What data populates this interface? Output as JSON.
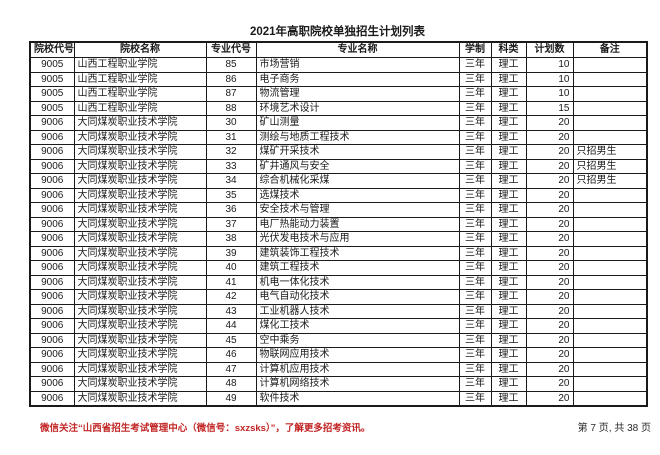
{
  "title": "2021年高职院校单独招生计划列表",
  "table": {
    "headers": [
      "院校代号",
      "院校名称",
      "专业代号",
      "专业名称",
      "学制",
      "科类",
      "计划数",
      "备注"
    ],
    "rows": [
      [
        "9005",
        "山西工程职业学院",
        "85",
        "市场营销",
        "三年",
        "理工",
        "10",
        ""
      ],
      [
        "9005",
        "山西工程职业学院",
        "86",
        "电子商务",
        "三年",
        "理工",
        "10",
        ""
      ],
      [
        "9005",
        "山西工程职业学院",
        "87",
        "物流管理",
        "三年",
        "理工",
        "10",
        ""
      ],
      [
        "9005",
        "山西工程职业学院",
        "88",
        "环境艺术设计",
        "三年",
        "理工",
        "15",
        ""
      ],
      [
        "9006",
        "大同煤炭职业技术学院",
        "30",
        "矿山测量",
        "三年",
        "理工",
        "20",
        ""
      ],
      [
        "9006",
        "大同煤炭职业技术学院",
        "31",
        "测绘与地质工程技术",
        "三年",
        "理工",
        "20",
        ""
      ],
      [
        "9006",
        "大同煤炭职业技术学院",
        "32",
        "煤矿开采技术",
        "三年",
        "理工",
        "20",
        "只招男生"
      ],
      [
        "9006",
        "大同煤炭职业技术学院",
        "33",
        "矿井通风与安全",
        "三年",
        "理工",
        "20",
        "只招男生"
      ],
      [
        "9006",
        "大同煤炭职业技术学院",
        "34",
        "综合机械化采煤",
        "三年",
        "理工",
        "20",
        "只招男生"
      ],
      [
        "9006",
        "大同煤炭职业技术学院",
        "35",
        "选煤技术",
        "三年",
        "理工",
        "20",
        ""
      ],
      [
        "9006",
        "大同煤炭职业技术学院",
        "36",
        "安全技术与管理",
        "三年",
        "理工",
        "20",
        ""
      ],
      [
        "9006",
        "大同煤炭职业技术学院",
        "37",
        "电厂热能动力装置",
        "三年",
        "理工",
        "20",
        ""
      ],
      [
        "9006",
        "大同煤炭职业技术学院",
        "38",
        "光伏发电技术与应用",
        "三年",
        "理工",
        "20",
        ""
      ],
      [
        "9006",
        "大同煤炭职业技术学院",
        "39",
        "建筑装饰工程技术",
        "三年",
        "理工",
        "20",
        ""
      ],
      [
        "9006",
        "大同煤炭职业技术学院",
        "40",
        "建筑工程技术",
        "三年",
        "理工",
        "20",
        ""
      ],
      [
        "9006",
        "大同煤炭职业技术学院",
        "41",
        "机电一体化技术",
        "三年",
        "理工",
        "20",
        ""
      ],
      [
        "9006",
        "大同煤炭职业技术学院",
        "42",
        "电气自动化技术",
        "三年",
        "理工",
        "20",
        ""
      ],
      [
        "9006",
        "大同煤炭职业技术学院",
        "43",
        "工业机器人技术",
        "三年",
        "理工",
        "20",
        ""
      ],
      [
        "9006",
        "大同煤炭职业技术学院",
        "44",
        "煤化工技术",
        "三年",
        "理工",
        "20",
        ""
      ],
      [
        "9006",
        "大同煤炭职业技术学院",
        "45",
        "空中乘务",
        "三年",
        "理工",
        "20",
        ""
      ],
      [
        "9006",
        "大同煤炭职业技术学院",
        "46",
        "物联网应用技术",
        "三年",
        "理工",
        "20",
        ""
      ],
      [
        "9006",
        "大同煤炭职业技术学院",
        "47",
        "计算机应用技术",
        "三年",
        "理工",
        "20",
        ""
      ],
      [
        "9006",
        "大同煤炭职业技术学院",
        "48",
        "计算机网络技术",
        "三年",
        "理工",
        "20",
        ""
      ],
      [
        "9006",
        "大同煤炭职业技术学院",
        "49",
        "软件技术",
        "三年",
        "理工",
        "20",
        ""
      ]
    ]
  },
  "footer": {
    "wechat_notice": "微信关注“山西省招生考试管理中心（微信号：sxzsks）”，了解更多招考资讯。",
    "page_indicator": "第 7 页, 共 38 页"
  },
  "colors": {
    "accent-red": "#c22626",
    "border": "#1a1a1a",
    "text": "#1a1a1a",
    "background": "#ffffff"
  }
}
